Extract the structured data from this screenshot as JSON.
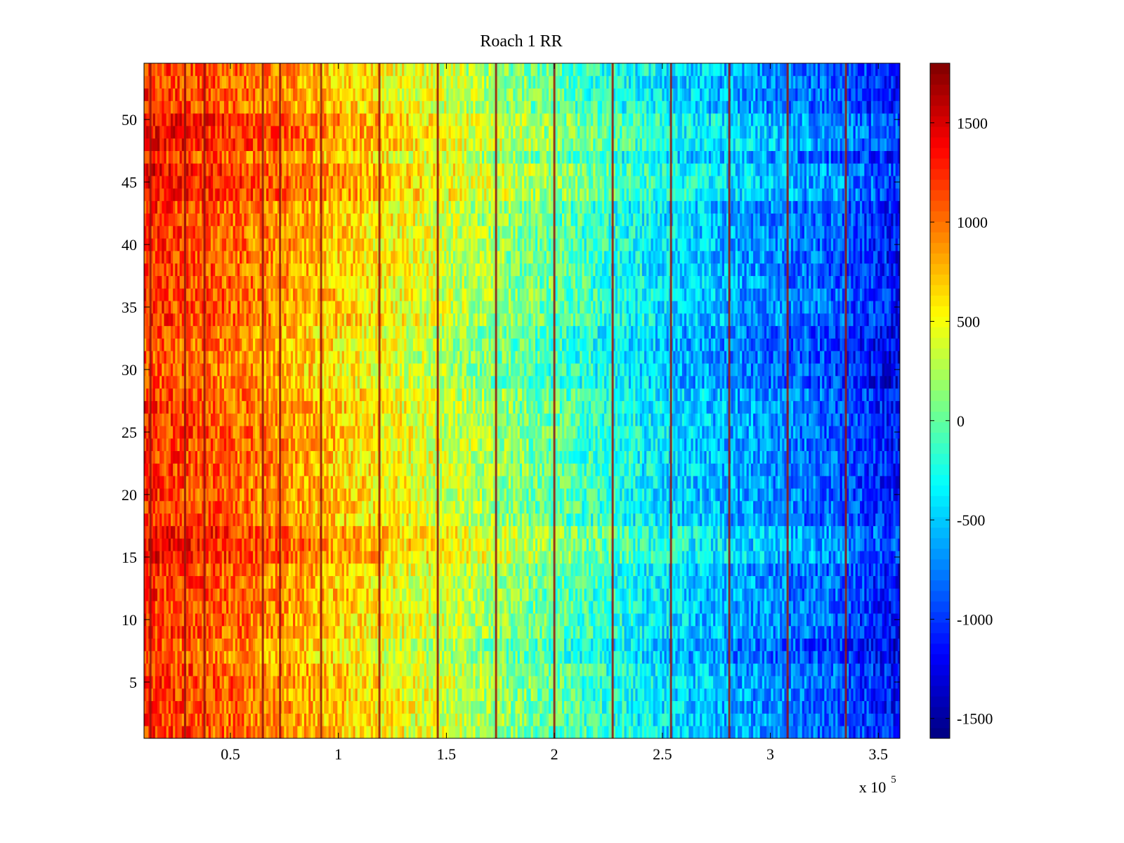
{
  "chart_data": {
    "type": "heatmap",
    "title": "Roach 1 RR",
    "xlabel": "",
    "ylabel": "",
    "x_multiplier_label": {
      "base": "x 10",
      "exponent": "5"
    },
    "xlim": [
      0.1,
      3.6
    ],
    "ylim": [
      0.5,
      54.5
    ],
    "x_ticks": [
      0.5,
      1,
      1.5,
      2,
      2.5,
      3,
      3.5
    ],
    "x_tick_labels": [
      "0.5",
      "1",
      "1.5",
      "2",
      "2.5",
      "3",
      "3.5"
    ],
    "y_ticks": [
      5,
      10,
      15,
      20,
      25,
      30,
      35,
      40,
      45,
      50
    ],
    "y_tick_labels": [
      "5",
      "10",
      "15",
      "20",
      "25",
      "30",
      "35",
      "40",
      "45",
      "50"
    ],
    "rows": 54,
    "colorbar": {
      "colormap": "jet",
      "clim": [
        -1600,
        1800
      ],
      "ticks": [
        -1500,
        -1000,
        -500,
        0,
        500,
        1000,
        1500
      ],
      "tick_labels": [
        "-1500",
        "-1000",
        "-500",
        "0",
        "500",
        "1000",
        "1500"
      ]
    },
    "column_trend": {
      "description_units": "x in units of 10^5, value in colormap units",
      "x": [
        0.1,
        0.5,
        1.0,
        1.5,
        2.0,
        2.5,
        3.0,
        3.3,
        3.6
      ],
      "value": [
        1250,
        1050,
        700,
        350,
        0,
        -400,
        -700,
        -850,
        -1150
      ]
    },
    "row_offsets_value": {
      "rows_high": [
        15,
        16,
        17,
        44,
        45,
        46,
        48,
        49,
        50
      ],
      "rows_low": [
        29,
        30,
        31,
        32,
        33,
        7,
        8
      ],
      "high_offset": 180,
      "low_offset": -120
    },
    "vertical_artifact_lines_x": [
      0.13,
      0.29,
      0.38,
      0.65,
      0.73,
      0.92,
      1.19,
      1.46,
      1.73,
      2.0,
      2.27,
      2.54,
      2.81,
      3.08,
      3.35
    ]
  }
}
